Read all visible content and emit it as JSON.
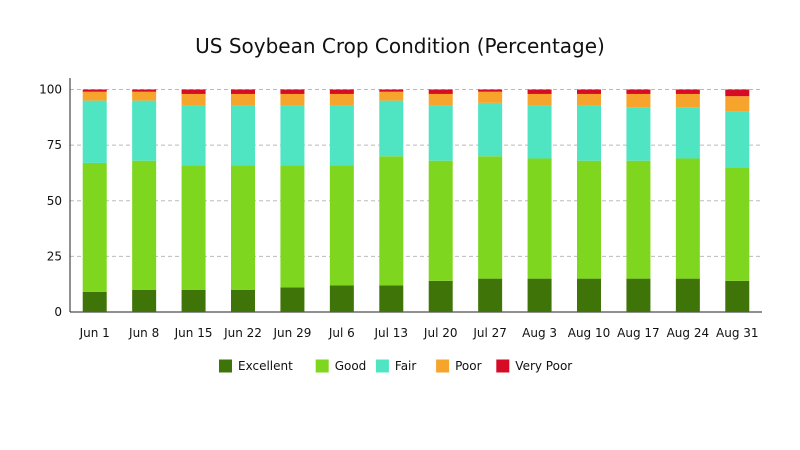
{
  "chart_data": {
    "type": "bar",
    "stacked": true,
    "title": "US Soybean Crop Condition (Percentage)",
    "xlabel": "",
    "ylabel": "",
    "ylim": [
      0,
      100
    ],
    "yticks": [
      0,
      25,
      50,
      75,
      100
    ],
    "grid": "horizontal dashed",
    "legend_position": "bottom",
    "categories": [
      "Jun 1",
      "Jun 8",
      "Jun 15",
      "Jun 22",
      "Jun 29",
      "Jul 6",
      "Jul 13",
      "Jul 20",
      "Jul 27",
      "Aug 3",
      "Aug 10",
      "Aug 17",
      "Aug 24",
      "Aug 31"
    ],
    "series": [
      {
        "name": "Excellent",
        "color": "#3f7409",
        "values": [
          9,
          10,
          10,
          10,
          11,
          12,
          12,
          14,
          15,
          15,
          15,
          15,
          15,
          14
        ]
      },
      {
        "name": "Good",
        "color": "#7fd61f",
        "values": [
          58,
          58,
          56,
          56,
          55,
          54,
          58,
          54,
          55,
          54,
          53,
          53,
          54,
          51
        ]
      },
      {
        "name": "Fair",
        "color": "#4fe4c2",
        "values": [
          28,
          27,
          27,
          27,
          27,
          27,
          25,
          25,
          24,
          24,
          25,
          24,
          23,
          25
        ]
      },
      {
        "name": "Poor",
        "color": "#f6a42c",
        "values": [
          4,
          4,
          5,
          5,
          5,
          5,
          4,
          5,
          5,
          5,
          5,
          6,
          6,
          7
        ]
      },
      {
        "name": "Very Poor",
        "color": "#d60b26",
        "values": [
          1,
          1,
          2,
          2,
          2,
          2,
          1,
          2,
          1,
          2,
          2,
          2,
          2,
          3
        ]
      }
    ]
  }
}
